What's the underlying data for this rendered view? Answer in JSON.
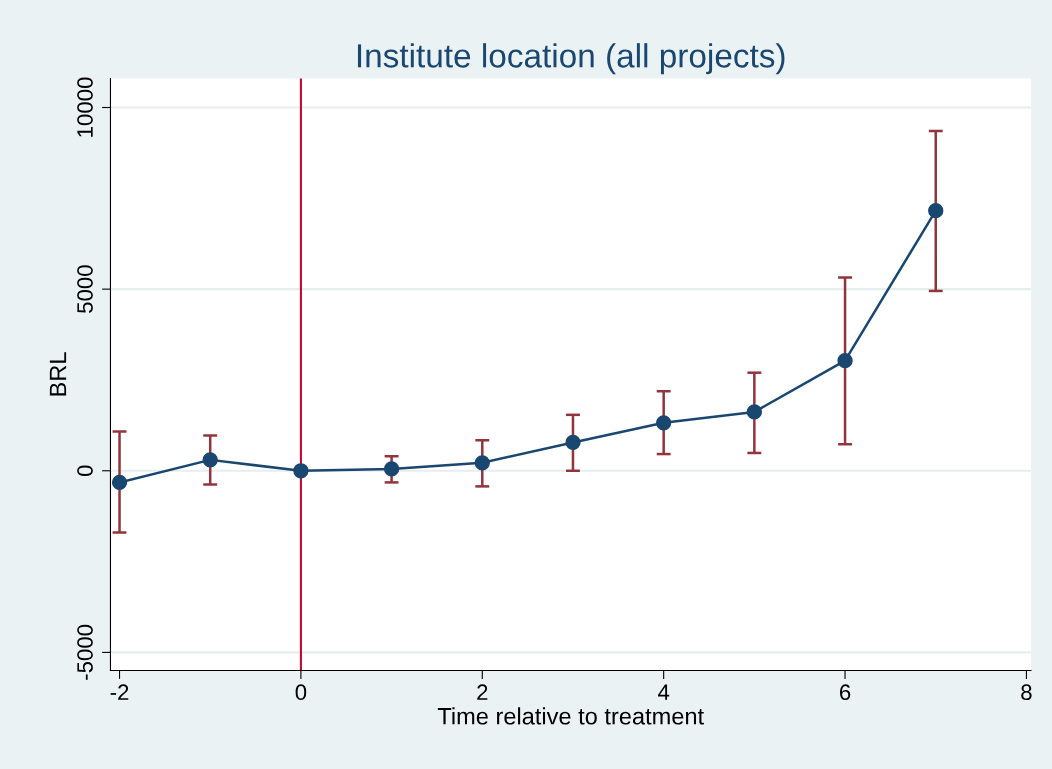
{
  "chart_data": {
    "type": "line",
    "title": "Institute location (all projects)",
    "xlabel": "Time relative to treatment",
    "ylabel": "BRL",
    "x": [
      -2,
      -1,
      0,
      1,
      2,
      3,
      4,
      5,
      6,
      7
    ],
    "series": [
      {
        "color": "#1a476f",
        "values": [
          -320,
          300,
          0,
          50,
          220,
          780,
          1320,
          1620,
          3030,
          7160
        ],
        "errors": [
          [
            -1700,
            1080
          ],
          [
            -380,
            970
          ],
          null,
          [
            -320,
            400
          ],
          [
            -430,
            840
          ],
          [
            0,
            1540
          ],
          [
            460,
            2190
          ],
          [
            490,
            2700
          ],
          [
            730,
            5320
          ],
          [
            4950,
            9350
          ]
        ]
      }
    ],
    "xlim": [
      -2.1,
      8.05
    ],
    "xticks": [
      -2,
      0,
      2,
      4,
      6,
      8
    ],
    "ylim": [
      -5500,
      10800
    ],
    "yticks": [
      -5000,
      0,
      5000,
      10000
    ],
    "ref_lines": [
      {
        "axis": "x",
        "value": 0,
        "color": "#c10534"
      }
    ],
    "grid": "y",
    "marker": "circle",
    "line_style": "solid",
    "legend": false
  }
}
